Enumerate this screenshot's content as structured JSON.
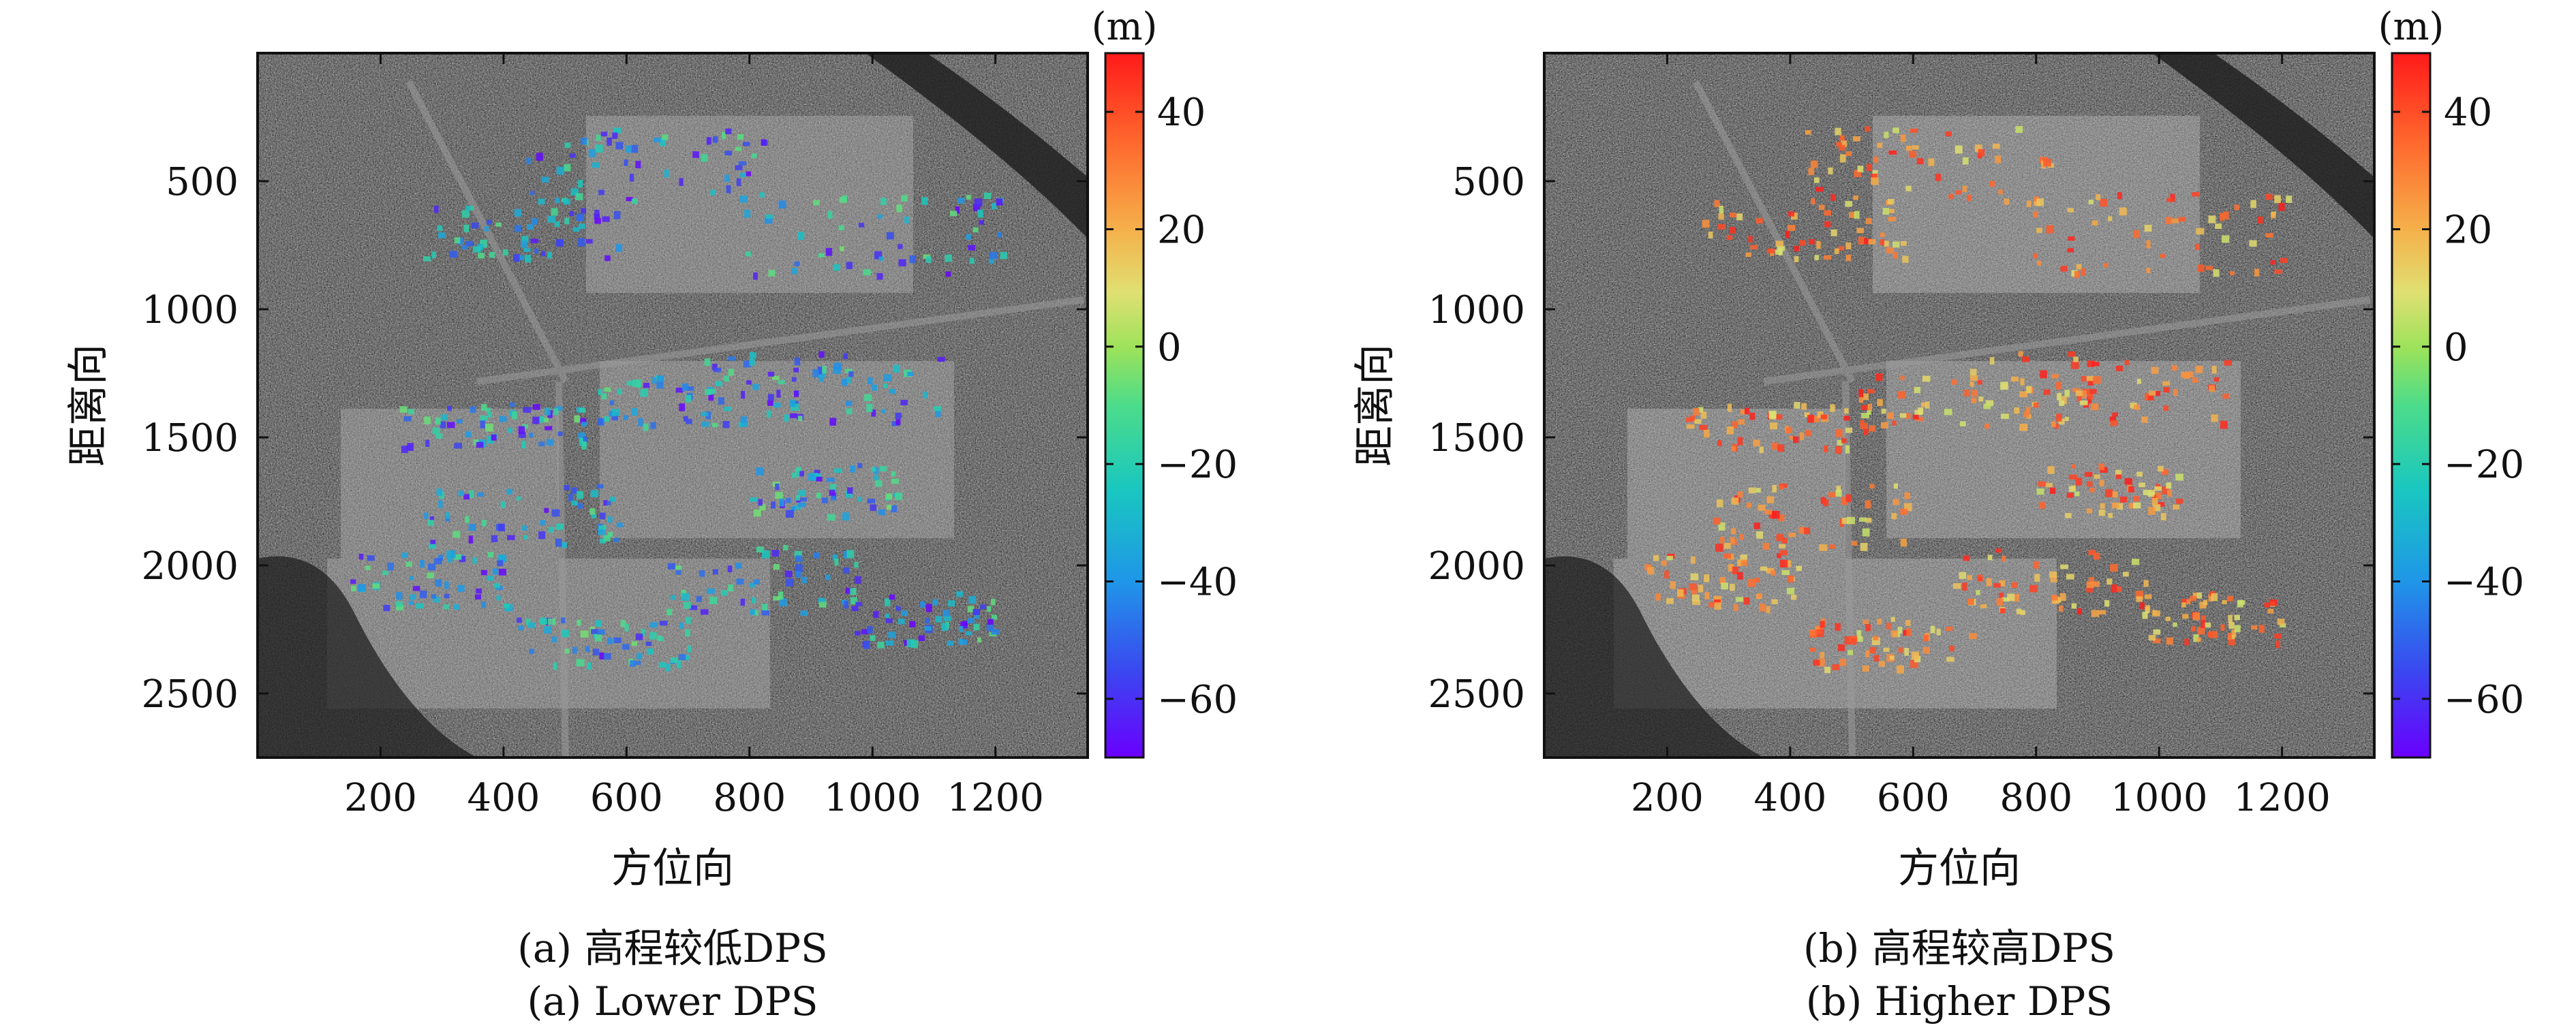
{
  "chart_data": [
    {
      "type": "heatmap",
      "panel_label": "(a)",
      "caption_zh": "(a) 高程较低DPS",
      "caption_en": "(a) Lower DPS",
      "xlabel": "方位向",
      "ylabel": "距离向",
      "x_ticks": [
        200,
        400,
        600,
        800,
        1000,
        1200
      ],
      "y_ticks": [
        500,
        1000,
        1500,
        2000,
        2500
      ],
      "xlim": [
        0,
        1350
      ],
      "ylim": [
        2750,
        0
      ],
      "colorbar": {
        "unit": "(m)",
        "ticks": [
          40,
          20,
          0,
          -20,
          -40,
          -60
        ],
        "range": [
          -70,
          50
        ]
      },
      "dps_height_range": [
        -70,
        -5
      ]
    },
    {
      "type": "heatmap",
      "panel_label": "(b)",
      "caption_zh": "(b) 高程较高DPS",
      "caption_en": "(b) Higher DPS",
      "xlabel": "方位向",
      "ylabel": "距离向",
      "x_ticks": [
        200,
        400,
        600,
        800,
        1000,
        1200
      ],
      "y_ticks": [
        500,
        1000,
        1500,
        2000,
        2500
      ],
      "xlim": [
        0,
        1350
      ],
      "ylim": [
        2750,
        0
      ],
      "colorbar": {
        "unit": "(m)",
        "ticks": [
          40,
          20,
          0,
          -20,
          -40,
          -60
        ],
        "range": [
          -70,
          50
        ]
      },
      "dps_height_range": [
        5,
        50
      ]
    }
  ]
}
